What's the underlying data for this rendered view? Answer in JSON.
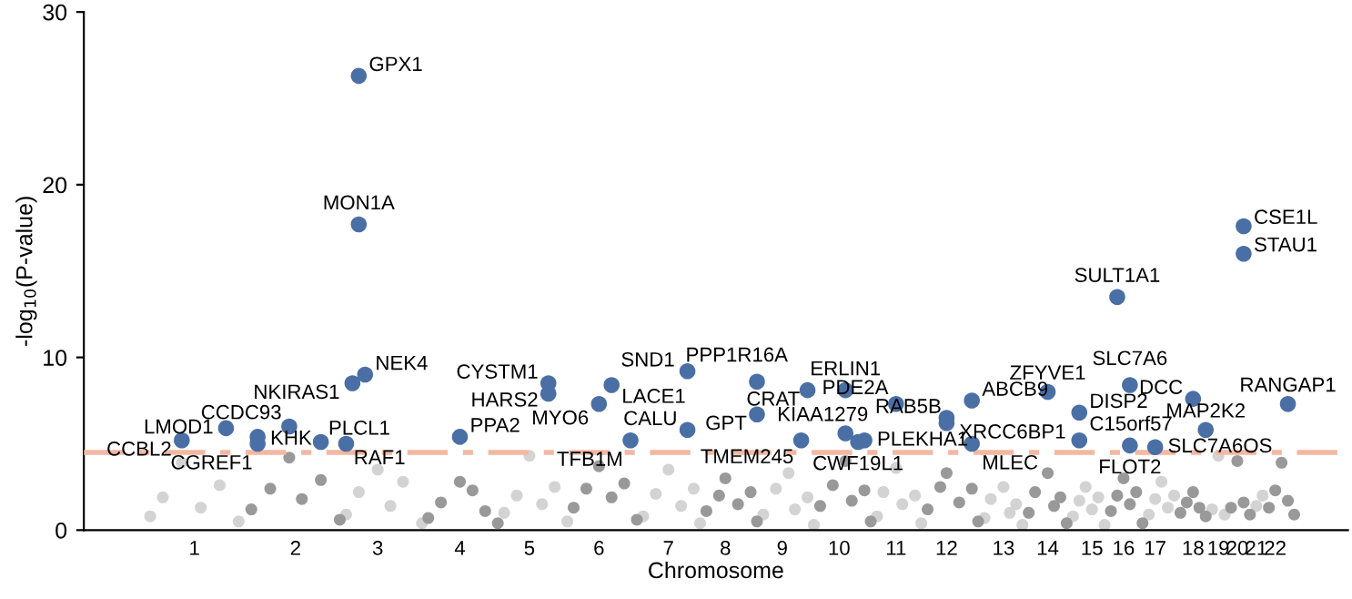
{
  "chart_data": {
    "type": "scatter",
    "xlabel": "Chromosome",
    "ylabel": "-log$_{10}$(P-value)",
    "ylim": [
      0,
      30
    ],
    "yticks": [
      0,
      10,
      20,
      30
    ],
    "grid": false,
    "marker": "circle",
    "categories": [
      null,
      null,
      null,
      null,
      null,
      null,
      null,
      null,
      null,
      null,
      null,
      null,
      null,
      null,
      null,
      null,
      null,
      "1",
      null,
      null,
      null,
      null,
      null,
      null,
      null,
      null,
      null,
      null,
      null,
      null,
      null,
      null,
      null,
      "2",
      null,
      null,
      null,
      null,
      null,
      null,
      null,
      null,
      null,
      null,
      null,
      null,
      "3",
      null,
      null,
      null,
      null,
      null,
      null,
      null,
      null,
      null,
      null,
      null,
      null,
      "4",
      null,
      null,
      null,
      null,
      null,
      null,
      null,
      null,
      null,
      null,
      "5",
      null,
      null,
      null,
      null,
      null,
      null,
      null,
      null,
      null,
      null,
      "6",
      null,
      null,
      null,
      null,
      null,
      null,
      null,
      null,
      null,
      null,
      "7",
      null,
      null,
      null,
      null,
      null,
      null,
      null,
      null,
      "8",
      null,
      null,
      null,
      null,
      null,
      null,
      null,
      null,
      "9",
      null,
      null,
      null,
      null,
      null,
      null,
      null,
      null,
      "10",
      null,
      null,
      null,
      null,
      null,
      null,
      null,
      null,
      "11",
      null,
      null,
      null,
      null,
      null,
      null,
      null,
      "12",
      null,
      null,
      null,
      null,
      null,
      null,
      null,
      null,
      "13",
      null,
      null,
      null,
      null,
      null,
      null,
      "14",
      null,
      null,
      null,
      null,
      null,
      null,
      "15",
      null,
      null,
      null,
      null,
      "16",
      null,
      null,
      null,
      null,
      "17",
      null,
      null,
      null,
      null,
      null,
      "18",
      null,
      null,
      null,
      "19",
      null,
      null,
      "20",
      null,
      null,
      "21",
      null,
      null,
      "22",
      null,
      null,
      null,
      null,
      null,
      null,
      null,
      null,
      null,
      null,
      null
    ],
    "series": [
      {
        "color": "#d3d3d3",
        "values": [
          null,
          null,
          null,
          null,
          null,
          null,
          null,
          null,
          null,
          null,
          0.8,
          null,
          1.9,
          null,
          null,
          3.9,
          null,
          null,
          1.3,
          null,
          null,
          2.6,
          null,
          null,
          0.5,
          null,
          null,
          null,
          null,
          null,
          null,
          null,
          null,
          null,
          null,
          null,
          null,
          null,
          null,
          null,
          null,
          0.9,
          null,
          2.2,
          null,
          null,
          3.5,
          null,
          1.4,
          null,
          2.8,
          null,
          null,
          0.4,
          null,
          null,
          null,
          null,
          null,
          null,
          null,
          null,
          null,
          null,
          null,
          null,
          1.0,
          null,
          2.0,
          null,
          4.3,
          null,
          1.5,
          null,
          2.5,
          null,
          0.5,
          null,
          null,
          null,
          null,
          null,
          null,
          null,
          null,
          null,
          null,
          null,
          0.8,
          null,
          2.1,
          null,
          3.5,
          null,
          1.4,
          null,
          2.4,
          0.4,
          null,
          null,
          null,
          null,
          null,
          null,
          null,
          null,
          null,
          0.9,
          null,
          2.4,
          null,
          3.3,
          1.2,
          null,
          1.9,
          0.3,
          null,
          null,
          null,
          null,
          null,
          null,
          null,
          null,
          null,
          0.8,
          2.2,
          null,
          3.6,
          1.5,
          null,
          2.0,
          0.4,
          null,
          null,
          null,
          null,
          null,
          null,
          null,
          null,
          null,
          0.7,
          1.8,
          null,
          2.5,
          1.0,
          1.5,
          0.3,
          null,
          null,
          null,
          null,
          null,
          null,
          null,
          0.8,
          1.7,
          2.5,
          1.2,
          1.9,
          0.3,
          null,
          null,
          null,
          null,
          null,
          null,
          0.9,
          1.8,
          2.8,
          1.3,
          2.0,
          null,
          null,
          null,
          null,
          null,
          1.2,
          4.3,
          0.9,
          null,
          null,
          null,
          null,
          1.4,
          2.0,
          null,
          null,
          null,
          null,
          null,
          null,
          null,
          null,
          null,
          null,
          null,
          null,
          null
        ]
      },
      {
        "color": "#999999",
        "values": [
          null,
          null,
          null,
          null,
          null,
          null,
          null,
          null,
          null,
          null,
          null,
          null,
          null,
          null,
          null,
          null,
          null,
          null,
          null,
          null,
          null,
          null,
          null,
          null,
          null,
          null,
          1.2,
          null,
          null,
          2.4,
          null,
          null,
          4.2,
          null,
          1.8,
          null,
          null,
          2.9,
          null,
          null,
          0.6,
          null,
          null,
          null,
          null,
          null,
          null,
          null,
          null,
          null,
          null,
          null,
          null,
          null,
          0.7,
          null,
          1.6,
          null,
          null,
          2.8,
          null,
          2.3,
          null,
          1.1,
          null,
          0.4,
          null,
          null,
          null,
          null,
          null,
          null,
          null,
          null,
          null,
          null,
          null,
          1.3,
          null,
          2.4,
          null,
          3.7,
          null,
          1.9,
          null,
          2.7,
          null,
          0.6,
          null,
          null,
          null,
          null,
          null,
          null,
          null,
          null,
          null,
          null,
          1.1,
          null,
          2.0,
          3.0,
          null,
          1.5,
          null,
          2.2,
          0.5,
          null,
          null,
          null,
          null,
          null,
          null,
          null,
          null,
          null,
          1.4,
          null,
          2.6,
          null,
          4.0,
          1.7,
          null,
          2.3,
          0.5,
          null,
          null,
          null,
          null,
          null,
          null,
          null,
          null,
          1.2,
          null,
          2.5,
          3.3,
          null,
          1.6,
          null,
          2.4,
          0.5,
          null,
          null,
          null,
          null,
          null,
          null,
          null,
          1.0,
          2.2,
          null,
          3.3,
          1.4,
          1.9,
          0.4,
          null,
          null,
          null,
          null,
          null,
          null,
          1.1,
          2.0,
          3.0,
          1.5,
          2.2,
          0.4,
          null,
          null,
          null,
          null,
          null,
          1.0,
          1.6,
          2.2,
          1.3,
          0.8,
          null,
          null,
          null,
          1.3,
          4.0,
          1.6,
          0.9,
          null,
          null,
          1.3,
          2.3,
          3.9,
          1.7,
          0.9,
          null,
          null,
          null,
          null,
          null,
          null,
          null,
          null
        ]
      },
      {
        "color": "#4a6fa5",
        "values": [
          null,
          null,
          null,
          null,
          null,
          null,
          null,
          null,
          null,
          null,
          null,
          null,
          null,
          null,
          null,
          5.2,
          null,
          null,
          null,
          null,
          null,
          null,
          5.9,
          null,
          null,
          null,
          null,
          5.4,
          null,
          null,
          null,
          null,
          6.0,
          null,
          null,
          null,
          null,
          5.1,
          null,
          null,
          null,
          5.0,
          8.5,
          26.3,
          9.0,
          null,
          null,
          null,
          null,
          null,
          null,
          null,
          null,
          null,
          null,
          null,
          null,
          null,
          null,
          5.4,
          null,
          null,
          null,
          null,
          null,
          null,
          null,
          null,
          null,
          null,
          null,
          null,
          null,
          8.5,
          null,
          null,
          null,
          null,
          null,
          null,
          null,
          7.3,
          null,
          8.4,
          null,
          null,
          5.2,
          null,
          null,
          null,
          null,
          null,
          null,
          null,
          null,
          9.2,
          null,
          null,
          null,
          null,
          null,
          null,
          null,
          null,
          null,
          null,
          8.6,
          null,
          null,
          null,
          null,
          null,
          null,
          5.2,
          8.1,
          null,
          null,
          null,
          null,
          null,
          8.1,
          null,
          5.1,
          5.2,
          null,
          null,
          null,
          null,
          7.3,
          null,
          null,
          null,
          null,
          null,
          null,
          null,
          6.5,
          null,
          null,
          null,
          7.5,
          null,
          null,
          null,
          null,
          null,
          null,
          null,
          null,
          null,
          null,
          null,
          8.0,
          null,
          null,
          null,
          null,
          6.8,
          null,
          null,
          null,
          null,
          null,
          13.5,
          null,
          8.4,
          null,
          null,
          null,
          4.8,
          null,
          null,
          null,
          null,
          null,
          7.6,
          null,
          5.8,
          null,
          null,
          null,
          null,
          null,
          17.6,
          null,
          null,
          null,
          null,
          null,
          null,
          7.3,
          null,
          null,
          null,
          null,
          null,
          null,
          null,
          null,
          null
        ],
        "value_labels": [
          null,
          null,
          null,
          null,
          null,
          null,
          null,
          null,
          null,
          null,
          null,
          null,
          null,
          null,
          null,
          "CCBL2",
          null,
          null,
          null,
          null,
          null,
          null,
          "LMOD1",
          null,
          null,
          null,
          null,
          "KHK",
          null,
          null,
          null,
          null,
          "CCDC93",
          null,
          null,
          null,
          null,
          "PLCL1",
          null,
          null,
          null,
          "RAF1",
          "NKIRAS1",
          "GPX1",
          "NEK4",
          null,
          null,
          null,
          null,
          null,
          null,
          null,
          null,
          null,
          null,
          null,
          null,
          null,
          null,
          "PPA2",
          null,
          null,
          null,
          null,
          null,
          null,
          null,
          null,
          null,
          null,
          null,
          null,
          null,
          "CYSTM1",
          null,
          null,
          null,
          null,
          null,
          null,
          null,
          "MYO6",
          null,
          "LACE1",
          null,
          null,
          "TFB1M",
          null,
          null,
          null,
          null,
          null,
          null,
          null,
          null,
          "SND1",
          null,
          null,
          null,
          null,
          null,
          null,
          null,
          null,
          null,
          null,
          "PPP1R16A",
          null,
          null,
          null,
          null,
          null,
          null,
          "TMEM245",
          "CRAT",
          null,
          null,
          null,
          null,
          null,
          "ERLIN1",
          null,
          "CWF19L1",
          "PLEKHA1",
          null,
          null,
          null,
          null,
          "PDE2A",
          null,
          null,
          null,
          null,
          null,
          null,
          null,
          "RAB5B",
          null,
          null,
          null,
          "ABCB9",
          null,
          null,
          null,
          null,
          null,
          null,
          null,
          null,
          null,
          null,
          null,
          "ZFYVE1",
          null,
          null,
          null,
          null,
          "DISP2",
          null,
          null,
          null,
          null,
          null,
          "SULT1A1",
          null,
          "SLC7A6",
          null,
          null,
          null,
          "SLC7A6OS",
          null,
          null,
          null,
          null,
          null,
          "DCC",
          null,
          "MAP2K2",
          null,
          null,
          null,
          null,
          null,
          "CSE1L",
          null,
          null,
          null,
          null,
          null,
          null,
          "RANGAP1",
          null,
          null,
          null,
          null,
          null,
          null,
          null,
          null,
          null
        ]
      },
      {
        "color": "#4a6fa5",
        "values": [
          null,
          null,
          null,
          null,
          null,
          null,
          null,
          null,
          null,
          null,
          null,
          null,
          null,
          null,
          null,
          null,
          null,
          null,
          null,
          null,
          null,
          null,
          null,
          null,
          null,
          null,
          null,
          5.0,
          null,
          null,
          null,
          null,
          null,
          null,
          null,
          null,
          null,
          null,
          null,
          null,
          null,
          null,
          null,
          17.7,
          null,
          null,
          null,
          null,
          null,
          null,
          null,
          null,
          null,
          null,
          null,
          null,
          null,
          null,
          null,
          null,
          null,
          null,
          null,
          null,
          null,
          null,
          null,
          null,
          null,
          null,
          null,
          null,
          null,
          7.9,
          null,
          null,
          null,
          null,
          null,
          null,
          null,
          null,
          null,
          null,
          null,
          null,
          null,
          null,
          null,
          null,
          null,
          null,
          null,
          null,
          null,
          5.8,
          null,
          null,
          null,
          null,
          null,
          null,
          null,
          null,
          null,
          null,
          6.7,
          null,
          null,
          null,
          null,
          null,
          null,
          null,
          null,
          null,
          null,
          null,
          null,
          null,
          5.6,
          null,
          null,
          null,
          null,
          null,
          null,
          null,
          null,
          null,
          null,
          null,
          null,
          null,
          null,
          null,
          6.2,
          null,
          null,
          null,
          5.0,
          null,
          null,
          null,
          null,
          null,
          null,
          null,
          null,
          null,
          null,
          null,
          null,
          null,
          null,
          null,
          null,
          5.2,
          null,
          null,
          null,
          null,
          null,
          null,
          null,
          4.9,
          null,
          null,
          null,
          null,
          null,
          null,
          null,
          null,
          null,
          null,
          null,
          null,
          null,
          null,
          null,
          null,
          null,
          16.0,
          null,
          null,
          null,
          null,
          null,
          null,
          null,
          null,
          null,
          null,
          null,
          null,
          null,
          null,
          null,
          null
        ],
        "value_labels": [
          null,
          null,
          null,
          null,
          null,
          null,
          null,
          null,
          null,
          null,
          null,
          null,
          null,
          null,
          null,
          null,
          null,
          null,
          null,
          null,
          null,
          null,
          null,
          null,
          null,
          null,
          null,
          "CGREF1",
          null,
          null,
          null,
          null,
          null,
          null,
          null,
          null,
          null,
          null,
          null,
          null,
          null,
          null,
          null,
          "MON1A",
          null,
          null,
          null,
          null,
          null,
          null,
          null,
          null,
          null,
          null,
          null,
          null,
          null,
          null,
          null,
          null,
          null,
          null,
          null,
          null,
          null,
          null,
          null,
          null,
          null,
          null,
          null,
          null,
          null,
          "HARS2",
          null,
          null,
          null,
          null,
          null,
          null,
          null,
          null,
          null,
          null,
          null,
          null,
          null,
          null,
          null,
          null,
          null,
          null,
          null,
          null,
          null,
          "CALU",
          null,
          null,
          null,
          null,
          null,
          null,
          null,
          null,
          null,
          null,
          "GPT",
          null,
          null,
          null,
          null,
          null,
          null,
          null,
          null,
          null,
          null,
          null,
          null,
          null,
          "KIAA1279",
          null,
          null,
          null,
          null,
          null,
          null,
          null,
          null,
          null,
          null,
          null,
          null,
          null,
          null,
          null,
          "XRCC6BP1",
          null,
          null,
          null,
          "MLEC",
          null,
          null,
          null,
          null,
          null,
          null,
          null,
          null,
          null,
          null,
          null,
          null,
          null,
          null,
          null,
          null,
          "C15orf57",
          null,
          null,
          null,
          null,
          null,
          null,
          null,
          "FLOT2",
          null,
          null,
          null,
          null,
          null,
          null,
          null,
          null,
          null,
          null,
          null,
          null,
          null,
          null,
          null,
          null,
          null,
          "STAU1",
          null,
          null,
          null,
          null,
          null,
          null,
          null,
          null,
          null,
          null,
          null,
          null,
          null,
          null,
          null,
          null
        ]
      }
    ],
    "ref_lines": [
      {
        "axis": "y",
        "value": 4.5,
        "color": "#f2b8a2",
        "line_style": "dashdot"
      }
    ]
  }
}
